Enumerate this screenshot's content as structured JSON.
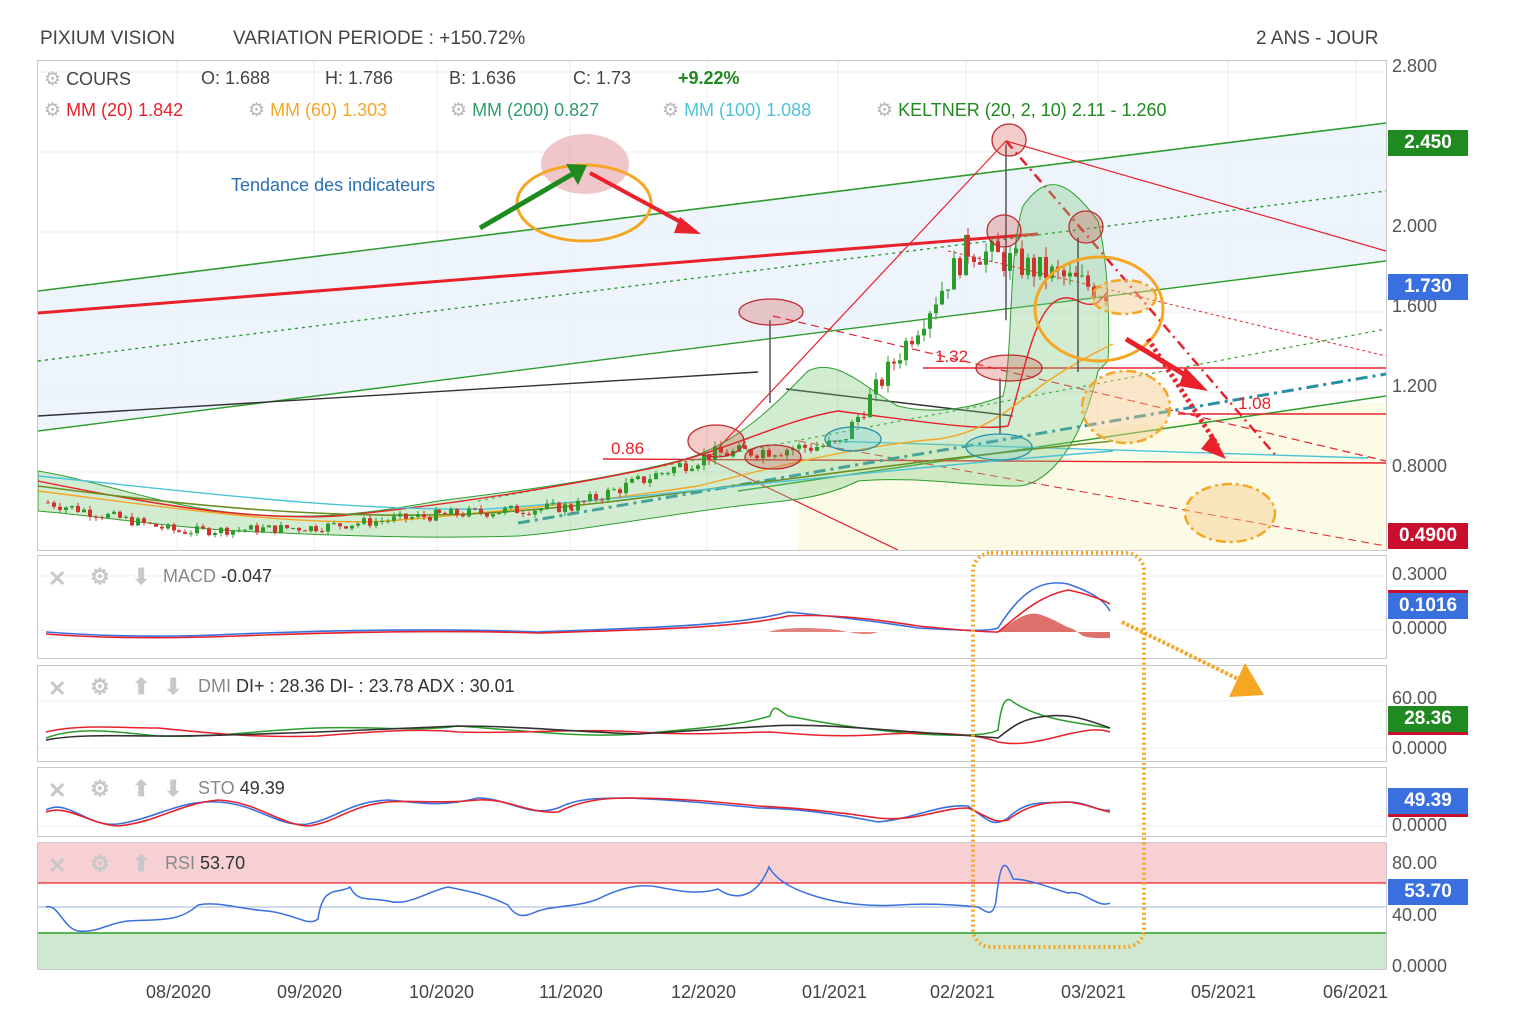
{
  "header": {
    "name": "PIXIUM VISION",
    "variation": "VARIATION PERIODE : +150.72%",
    "period": "2 ANS - JOUR"
  },
  "legend": {
    "cours_label": "COURS",
    "open": "O: 1.688",
    "high": "H: 1.786",
    "low": "B: 1.636",
    "close": "C: 1.73",
    "change": "+9.22%",
    "mm20_label": "MM (20)",
    "mm20_value": "1.842",
    "mm60_label": "MM (60)",
    "mm60_value": "1.303",
    "mm200_label": "MM (200)",
    "mm200_value": "0.827",
    "mm100_label": "MM (100)",
    "mm100_value": "1.088",
    "keltner_label": "KELTNER (20, 2, 10)",
    "keltner_value": "2.11 - 1.260"
  },
  "annotations": {
    "trend_text": "Tendance des indicateurs",
    "level_086": "0.86",
    "level_132": "1.32",
    "level_108": "1.08"
  },
  "price_axis": {
    "ticks": [
      "2.800",
      "2.000",
      "1.600",
      "1.200",
      "0.8000"
    ],
    "badge_high": "2.450",
    "badge_last": "1.730",
    "badge_low": "0.4900"
  },
  "macd": {
    "title": "MACD",
    "value": "-0.047",
    "ticks": [
      "0.3000",
      "0.0000"
    ],
    "badge": "0.1016"
  },
  "dmi": {
    "title": "DMI",
    "value": "DI+ : 28.36 DI- : 23.78 ADX : 30.01",
    "ticks": [
      "60.00",
      "0.0000"
    ],
    "badge": "28.36"
  },
  "sto": {
    "title": "STO",
    "value": "49.39",
    "ticks": [
      "0.0000"
    ],
    "badge": "49.39"
  },
  "rsi": {
    "title": "RSI",
    "value": "53.70",
    "ticks": [
      "80.00",
      "40.00",
      "0.0000"
    ],
    "badge": "53.70"
  },
  "x_axis": [
    "08/2020",
    "09/2020",
    "10/2020",
    "11/2020",
    "12/2020",
    "01/2021",
    "02/2021",
    "03/2021",
    "05/2021",
    "06/2021"
  ],
  "colors": {
    "mm20": "#e8212a",
    "mm60": "#f5a623",
    "mm200": "#2e9d6b",
    "mm100": "#4cc3d9",
    "keltner": "#1f8a1f",
    "up": "#2a9d2a",
    "down": "#d0342c",
    "badge_green": "#1f8a1f",
    "badge_blue": "#3a6fe0",
    "badge_red": "#c8102e"
  },
  "chart_data": {
    "type": "candlestick",
    "ylim": [
      0.49,
      2.8
    ],
    "x": [
      "2020-07",
      "2020-08",
      "2020-09",
      "2020-10",
      "2020-11",
      "2020-12",
      "2021-01",
      "2021-02",
      "2021-03"
    ],
    "close": [
      0.72,
      0.58,
      0.6,
      0.66,
      0.7,
      0.95,
      1.0,
      1.95,
      1.73
    ],
    "levels": [
      0.86,
      1.32,
      1.08
    ]
  }
}
